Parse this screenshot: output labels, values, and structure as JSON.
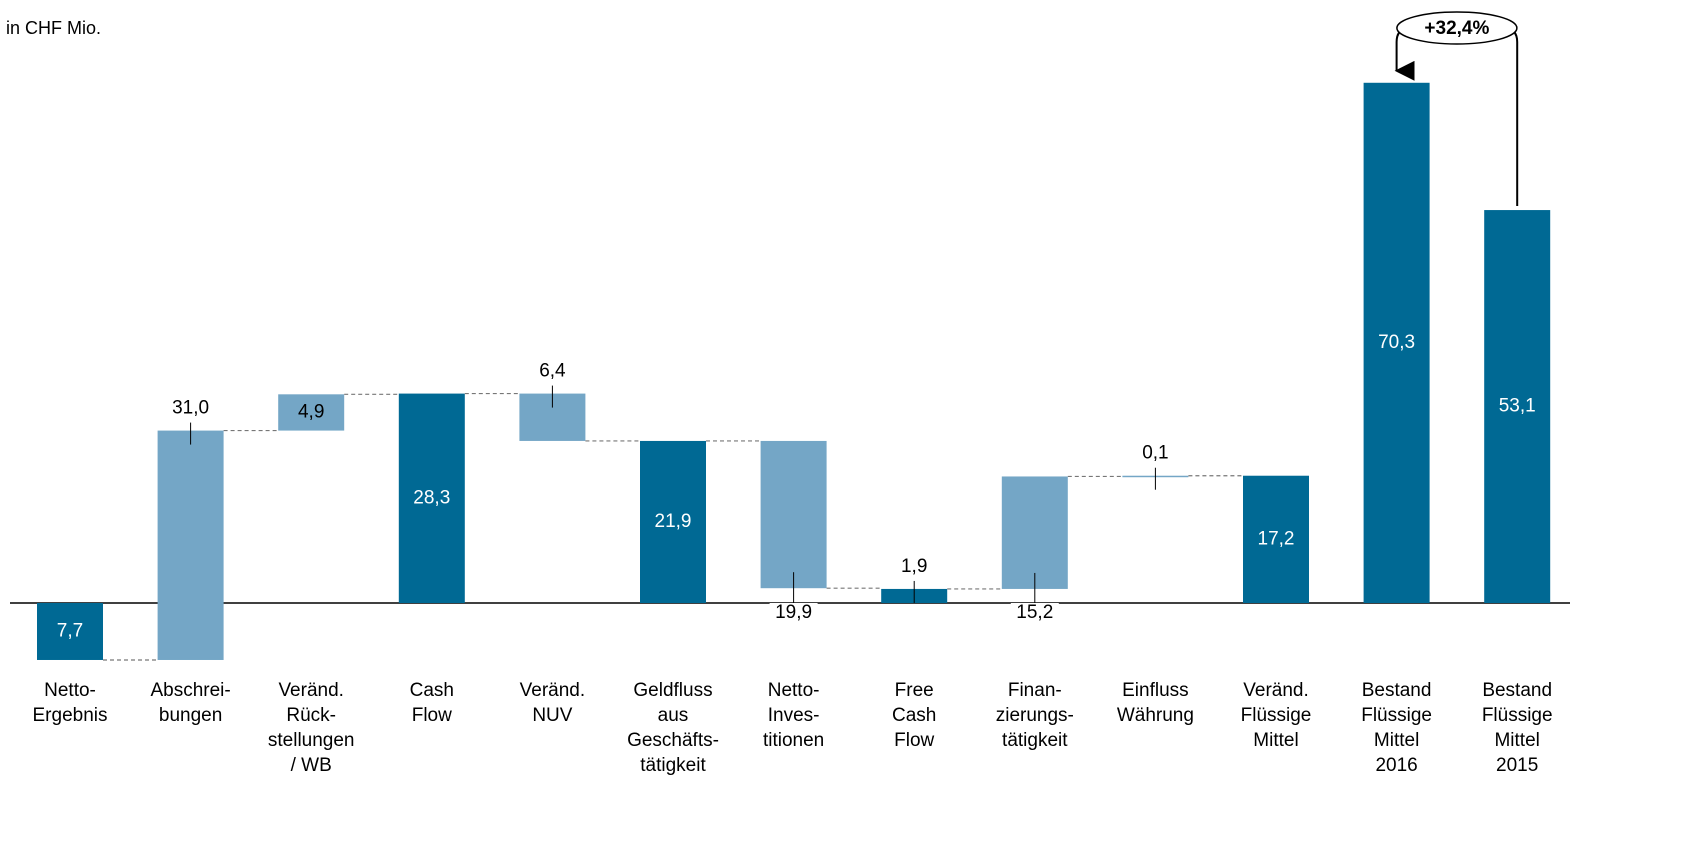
{
  "chart_data": {
    "type": "waterfall",
    "subtitle": "in CHF Mio.",
    "categories": [
      "Netto-\nErgebnis",
      "Abschrei-\nbungen",
      "Veränd.\nRück-\nstellungen\n/ WB",
      "Cash\nFlow",
      "Veränd.\nNUV",
      "Geldfluss\naus\nGeschäfts-\ntätigkeit",
      "Netto-\nInves-\ntitionen",
      "Free\nCash\nFlow",
      "Finan-\nzierungs-\ntätigkeit",
      "Einfluss\nWährung",
      "Veränd.\nFlüssige\nMittel",
      "Bestand\nFlüssige\nMittel\n2016",
      "Bestand\nFlüssige\nMittel\n2015"
    ],
    "values": [
      -7.7,
      31.0,
      4.9,
      28.3,
      -6.4,
      21.9,
      -19.9,
      1.9,
      15.2,
      0.1,
      17.2,
      70.3,
      53.1
    ],
    "value_labels": [
      "7,7",
      "31,0",
      "4,9",
      "28,3",
      "6,4",
      "21,9",
      "19,9",
      "1,9",
      "15,2",
      "0,1",
      "17,2",
      "70,3",
      "53,1"
    ],
    "colors": [
      "#006994",
      "#74a6c6",
      "#74a6c6",
      "#006994",
      "#74a6c6",
      "#006994",
      "#74a6c6",
      "#006994",
      "#74a6c6",
      "#74a6c6",
      "#006994",
      "#006994",
      "#006994"
    ],
    "annotation": "+32,4%",
    "ylim": [
      -10,
      75
    ]
  }
}
